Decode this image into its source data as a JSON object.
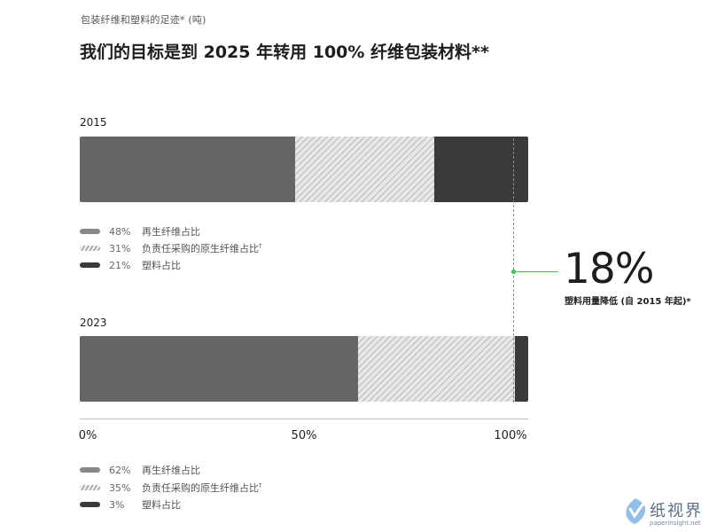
{
  "subtitle": "包装纤维和塑料的足迹* (吨)",
  "title": "我们的目标是到 2025 年转用 100% 纤维包装材料**",
  "callout": {
    "value": "18%",
    "label": "塑料用量降低 (自 2015 年起)*"
  },
  "colors": {
    "recycled": "#666666",
    "responsible": "#e8e8e8",
    "plastic": "#3a3a3a",
    "guide": "#2ecc40"
  },
  "watermark": {
    "text": "纸视界",
    "url": "paperinsight.net"
  },
  "chart_data": {
    "type": "bar",
    "orientation": "horizontal",
    "stacked": true,
    "categories": [
      "2015",
      "2023"
    ],
    "series": [
      {
        "name": "再生纤维占比",
        "values": [
          48,
          62
        ]
      },
      {
        "name": "负责任采购的原生纤维占比",
        "values": [
          31,
          35
        ],
        "footnote": "†"
      },
      {
        "name": "塑料占比",
        "values": [
          21,
          3
        ]
      }
    ],
    "xlim": [
      0,
      100
    ],
    "xticks": [
      "0%",
      "50%",
      "100%"
    ],
    "legends": [
      {
        "pcts": [
          "48%",
          "31%",
          "21%"
        ]
      },
      {
        "pcts": [
          "62%",
          "35%",
          "3%"
        ]
      }
    ]
  }
}
